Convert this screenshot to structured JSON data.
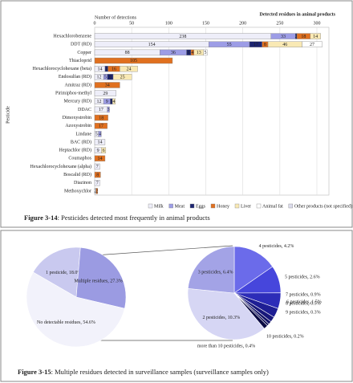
{
  "chart_data": [
    {
      "type": "bar",
      "orientation": "horizontal",
      "stacked": true,
      "header": "Detected residues in animal products",
      "xlabel": "Number of detections",
      "ylabel": "Pesticide",
      "caption_label": "Figure 3-14",
      "caption": ": Pesticides detected most frequently in animal products",
      "categories": [
        "Hexachlorobenzene",
        "DDT (RD)",
        "Copper",
        "Thiacloprid",
        "Hexachlorocyclohexane (beta)",
        "Endosulfan (RD)",
        "Amitraz (RD)",
        "Pirimiphos-methyl",
        "Mercury (RD)",
        "DDAC",
        "Dimoxystrobin",
        "Azoxystrobin",
        "Lindane",
        "BAC (RD)",
        "Heptachlor (RD)",
        "Coumaphos",
        "Hexachlorocyclohexane (alpha)",
        "Boscalid (RD)",
        "Diazinon",
        "Methoxychlor"
      ],
      "series": [
        {
          "name": "Milk",
          "color": "#eeeef9",
          "values": [
            238,
            154,
            88,
            null,
            14,
            12,
            null,
            29,
            12,
            17,
            null,
            null,
            5,
            14,
            9,
            null,
            7,
            null,
            7,
            2
          ]
        },
        {
          "name": "Meat",
          "color": "#9d9de6",
          "values": [
            33,
            55,
            36,
            null,
            null,
            5,
            null,
            null,
            9,
            3,
            null,
            null,
            4,
            null,
            null,
            null,
            null,
            null,
            null,
            null
          ]
        },
        {
          "name": "Eggs",
          "color": "#1c2470",
          "values": [
            2,
            17,
            6,
            null,
            4,
            8,
            null,
            null,
            3,
            null,
            null,
            null,
            null,
            null,
            null,
            null,
            null,
            null,
            null,
            null
          ]
        },
        {
          "name": "Honey",
          "color": "#e0701f",
          "values": [
            18,
            8,
            4,
            105,
            16,
            null,
            34,
            null,
            null,
            null,
            18,
            17,
            null,
            null,
            null,
            14,
            null,
            8,
            null,
            2
          ]
        },
        {
          "name": "Liver",
          "color": "#f9e9b4",
          "values": [
            14,
            46,
            13,
            null,
            24,
            25,
            null,
            null,
            4,
            null,
            null,
            null,
            null,
            null,
            6,
            null,
            null,
            null,
            null,
            null
          ]
        },
        {
          "name": "Animal fat",
          "color": "#ffffff",
          "values": [
            null,
            27,
            5,
            null,
            null,
            null,
            null,
            null,
            null,
            null,
            null,
            null,
            null,
            null,
            null,
            null,
            null,
            null,
            null,
            null
          ]
        },
        {
          "name": "Other products (not specified)",
          "color": "#dcdcec",
          "values": [
            null,
            null,
            null,
            null,
            null,
            null,
            null,
            null,
            null,
            null,
            null,
            null,
            null,
            null,
            null,
            null,
            null,
            null,
            null,
            null
          ]
        }
      ],
      "xlim": [
        0,
        300
      ],
      "xticks": [
        0,
        50,
        100,
        150,
        200,
        250,
        300
      ],
      "grid": true
    },
    {
      "type": "pie",
      "caption_label": "Figure 3-15",
      "caption": ": Multiple residues detected in surveillance samples (surveillance samples only)",
      "values": [
        18.0,
        27.3,
        54.6
      ],
      "value_labels": [
        "1 pesticide, 18.0%",
        "Multiple residues, 27.3%",
        "No detectable residues, 54.6%"
      ],
      "colors": [
        "#c9c9ef",
        "#9b9be2",
        "#f2f2fb"
      ]
    },
    {
      "type": "pie",
      "values": [
        4.2,
        2.6,
        1.5,
        0.9,
        0.5,
        0.3,
        0.2,
        0.4,
        10.3,
        6.4
      ],
      "value_labels": [
        "4 pesticides, 4.2%",
        "5 pesticides, 2.6%",
        "6 pesticides, 1.5%",
        "7 pesticides, 0.9%",
        "8 pesticides, 0.5%",
        "9 pesticides, 0.3%",
        "10 pesticides, 0.2%",
        "more than 10 pesticides, 0.4%",
        "2 pesticides, 10.3%",
        "3 pesticides, 6.4%"
      ],
      "colors": [
        "#6b6bea",
        "#4646dc",
        "#2c2cb8",
        "#1e1e94",
        "#18187a",
        "#121266",
        "#0e0e55",
        "#0a0a44",
        "#d6d6f4",
        "#a3a3e6"
      ]
    }
  ]
}
